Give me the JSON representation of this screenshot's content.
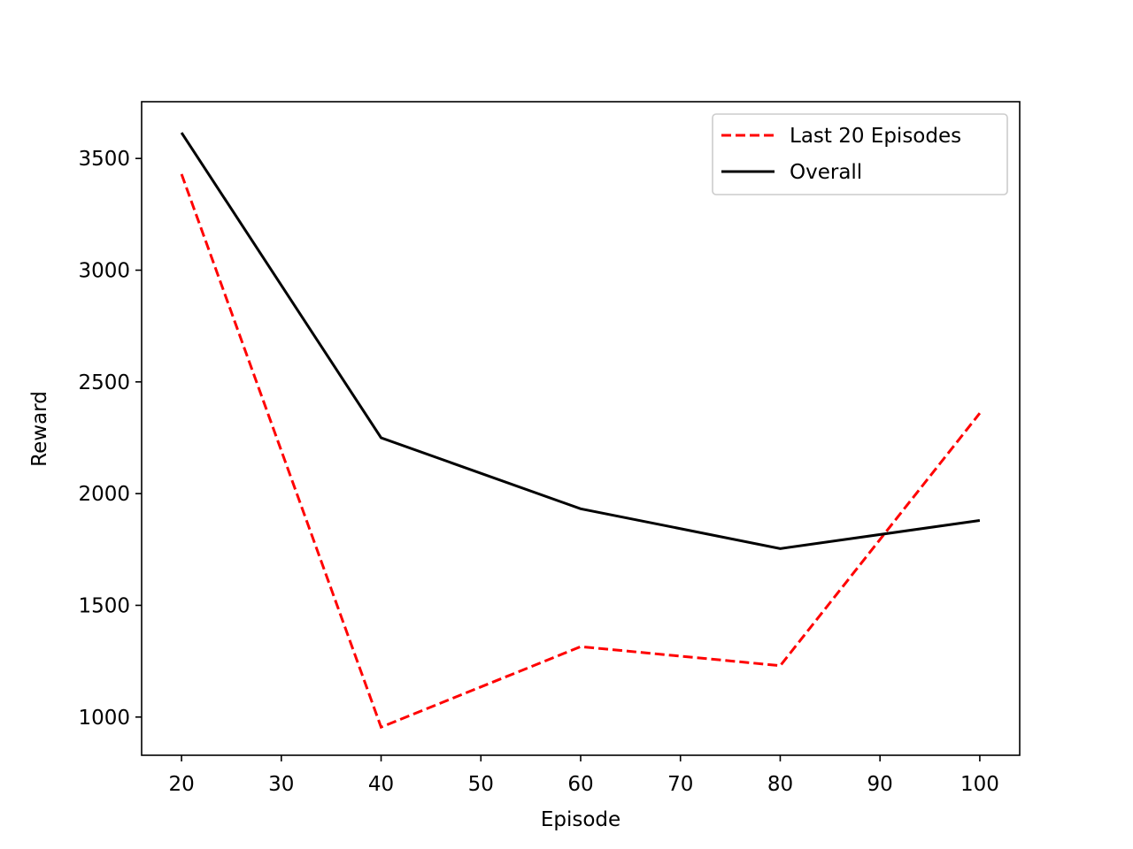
{
  "chart_data": {
    "type": "line",
    "title": "",
    "xlabel": "Episode",
    "ylabel": "Reward",
    "xlim": [
      16,
      104
    ],
    "ylim": [
      829,
      3754
    ],
    "xticks": [
      20,
      30,
      40,
      50,
      60,
      70,
      80,
      90,
      100
    ],
    "yticks": [
      1000,
      1500,
      2000,
      2500,
      3000,
      3500
    ],
    "grid": false,
    "legend_position": "top-right",
    "series": [
      {
        "name": "Last 20 Episodes",
        "color": "#ff0000",
        "line_style": "dashed",
        "x": [
          20,
          40,
          60,
          80,
          100
        ],
        "y": [
          3430,
          955,
          1315,
          1230,
          2360
        ]
      },
      {
        "name": "Overall",
        "color": "#000000",
        "line_style": "solid",
        "x": [
          20,
          40,
          60,
          80,
          100
        ],
        "y": [
          3615,
          2250,
          1932,
          1754,
          1880
        ]
      }
    ]
  }
}
